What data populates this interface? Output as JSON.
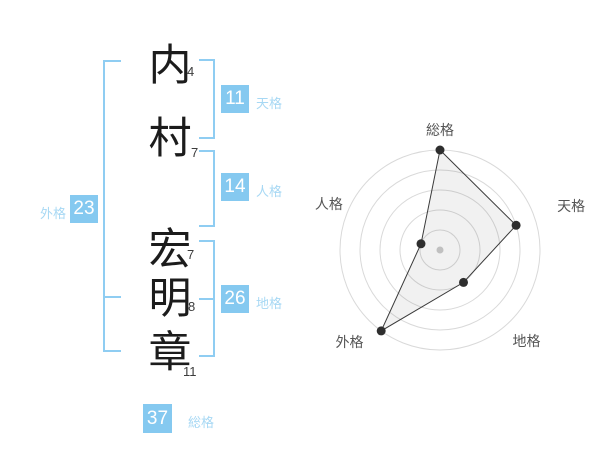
{
  "name": {
    "characters": [
      {
        "char": "内",
        "strokes": "4"
      },
      {
        "char": "村",
        "strokes": "7"
      },
      {
        "char": "宏",
        "strokes": "7"
      },
      {
        "char": "明",
        "strokes": "8"
      },
      {
        "char": "章",
        "strokes": "11"
      }
    ]
  },
  "kaku": {
    "tenkaku": {
      "label": "天格",
      "value": "11"
    },
    "jinkaku": {
      "label": "人格",
      "value": "14"
    },
    "chikaku": {
      "label": "地格",
      "value": "26"
    },
    "gaikaku": {
      "label": "外格",
      "value": "23"
    },
    "soukaku": {
      "label": "総格",
      "value": "37"
    }
  },
  "colors": {
    "accent_box": "#85c9f0",
    "accent_bracket": "#8fcdf2",
    "accent_label": "#a7d8f4",
    "ring_gray": "#d9d9d9",
    "point_dark": "#2e2e2e",
    "center_dot_gray": "#c0c0c0",
    "chart_label_gray": "#555555"
  },
  "chart_data": {
    "type": "radar",
    "axes": [
      "総格",
      "天格",
      "地格",
      "外格",
      "人格"
    ],
    "values": [
      100,
      80,
      40,
      100,
      20
    ],
    "max": 100,
    "rings": [
      20,
      40,
      60,
      80,
      100
    ],
    "start_angle_deg": 90,
    "direction": "clockwise",
    "grid": "concentric-circles",
    "legend": "none"
  }
}
